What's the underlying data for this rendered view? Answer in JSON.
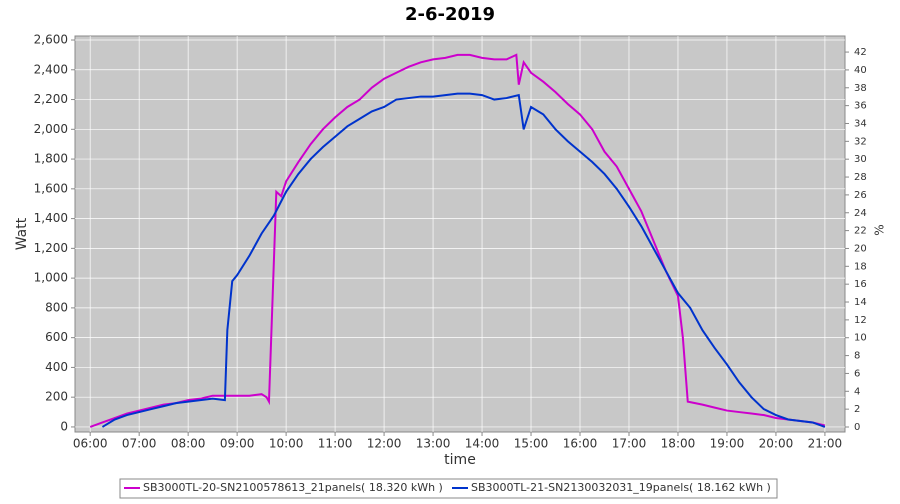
{
  "chart_data": {
    "type": "line",
    "title": "2-6-2019",
    "x_label": "time",
    "y_label": "Watt",
    "y2_label": "%",
    "xlim": [
      5.69,
      21.41
    ],
    "ylim": [
      -34,
      2627
    ],
    "y2lim": [
      -0.56,
      43.8
    ],
    "xticks": [
      {
        "value": 6,
        "label": "06:00"
      },
      {
        "value": 7,
        "label": "07:00"
      },
      {
        "value": 8,
        "label": "08:00"
      },
      {
        "value": 9,
        "label": "09:00"
      },
      {
        "value": 10,
        "label": "10:00"
      },
      {
        "value": 11,
        "label": "11:00"
      },
      {
        "value": 12,
        "label": "12:00"
      },
      {
        "value": 13,
        "label": "13:00"
      },
      {
        "value": 14,
        "label": "14:00"
      },
      {
        "value": 15,
        "label": "15:00"
      },
      {
        "value": 16,
        "label": "16:00"
      },
      {
        "value": 17,
        "label": "17:00"
      },
      {
        "value": 18,
        "label": "18:00"
      },
      {
        "value": 19,
        "label": "19:00"
      },
      {
        "value": 20,
        "label": "20:00"
      },
      {
        "value": 21,
        "label": "21:00"
      }
    ],
    "yticks": [
      0,
      200,
      400,
      600,
      800,
      {
        "value": 1000,
        "label": "1,000"
      },
      {
        "value": 1200,
        "label": "1,200"
      },
      {
        "value": 1400,
        "label": "1,400"
      },
      {
        "value": 1600,
        "label": "1,600"
      },
      {
        "value": 1800,
        "label": "1,800"
      },
      {
        "value": 2000,
        "label": "2,000"
      },
      {
        "value": 2200,
        "label": "2,200"
      },
      {
        "value": 2400,
        "label": "2,400"
      },
      {
        "value": 2600,
        "label": "2,600"
      }
    ],
    "y2ticks": [
      0,
      2,
      4,
      6,
      8,
      10,
      12,
      14,
      16,
      18,
      20,
      22,
      24,
      26,
      28,
      30,
      32,
      34,
      36,
      38,
      40,
      42
    ],
    "grid": true,
    "series": [
      {
        "name": "SB3000TL-20-SN2100578613_21panels( 18.320 kWh )",
        "color": "#cc00cc",
        "x": [
          6.0,
          6.25,
          6.5,
          6.75,
          7.0,
          7.25,
          7.5,
          7.75,
          8.0,
          8.25,
          8.5,
          8.75,
          9.0,
          9.25,
          9.5,
          9.6,
          9.65,
          9.8,
          9.9,
          10.0,
          10.25,
          10.5,
          10.75,
          11.0,
          11.25,
          11.5,
          11.75,
          12.0,
          12.25,
          12.5,
          12.75,
          13.0,
          13.25,
          13.5,
          13.75,
          14.0,
          14.25,
          14.5,
          14.7,
          14.75,
          14.85,
          15.0,
          15.25,
          15.5,
          15.75,
          16.0,
          16.25,
          16.5,
          16.75,
          17.0,
          17.25,
          17.5,
          17.75,
          18.0,
          18.1,
          18.2,
          18.5,
          18.75,
          19.0,
          19.25,
          19.5,
          19.75,
          20.0,
          20.25,
          20.5,
          20.75,
          21.0
        ],
        "values": [
          0,
          30,
          60,
          90,
          110,
          130,
          150,
          160,
          180,
          190,
          210,
          210,
          210,
          210,
          220,
          200,
          170,
          1580,
          1550,
          1650,
          1780,
          1900,
          2000,
          2080,
          2150,
          2200,
          2280,
          2340,
          2380,
          2420,
          2450,
          2470,
          2480,
          2500,
          2500,
          2480,
          2470,
          2470,
          2500,
          2300,
          2450,
          2380,
          2320,
          2250,
          2170,
          2100,
          2000,
          1850,
          1750,
          1600,
          1450,
          1250,
          1050,
          880,
          600,
          170,
          150,
          130,
          110,
          100,
          90,
          80,
          60,
          50,
          40,
          30,
          10
        ]
      },
      {
        "name": "SB3000TL-21-SN2130032031_19panels( 18.162 kWh )",
        "color": "#0033cc",
        "x": [
          6.25,
          6.5,
          6.75,
          7.0,
          7.25,
          7.5,
          7.75,
          8.0,
          8.25,
          8.5,
          8.75,
          8.8,
          8.9,
          9.0,
          9.25,
          9.5,
          9.75,
          10.0,
          10.25,
          10.5,
          10.75,
          11.0,
          11.25,
          11.5,
          11.75,
          12.0,
          12.25,
          12.5,
          12.75,
          13.0,
          13.25,
          13.5,
          13.75,
          14.0,
          14.25,
          14.5,
          14.75,
          14.85,
          15.0,
          15.25,
          15.5,
          15.75,
          16.0,
          16.25,
          16.5,
          16.75,
          17.0,
          17.25,
          17.5,
          17.75,
          18.0,
          18.25,
          18.5,
          18.75,
          19.0,
          19.25,
          19.5,
          19.75,
          20.0,
          20.25,
          20.5,
          20.75,
          21.0
        ],
        "values": [
          0,
          50,
          80,
          100,
          120,
          140,
          160,
          170,
          180,
          190,
          180,
          650,
          980,
          1020,
          1150,
          1300,
          1420,
          1580,
          1700,
          1800,
          1880,
          1950,
          2020,
          2070,
          2120,
          2150,
          2200,
          2210,
          2220,
          2220,
          2230,
          2240,
          2240,
          2230,
          2200,
          2210,
          2230,
          2000,
          2150,
          2100,
          2000,
          1920,
          1850,
          1780,
          1700,
          1600,
          1480,
          1350,
          1200,
          1050,
          900,
          800,
          650,
          530,
          420,
          300,
          200,
          120,
          80,
          50,
          40,
          30,
          0
        ]
      }
    ]
  }
}
